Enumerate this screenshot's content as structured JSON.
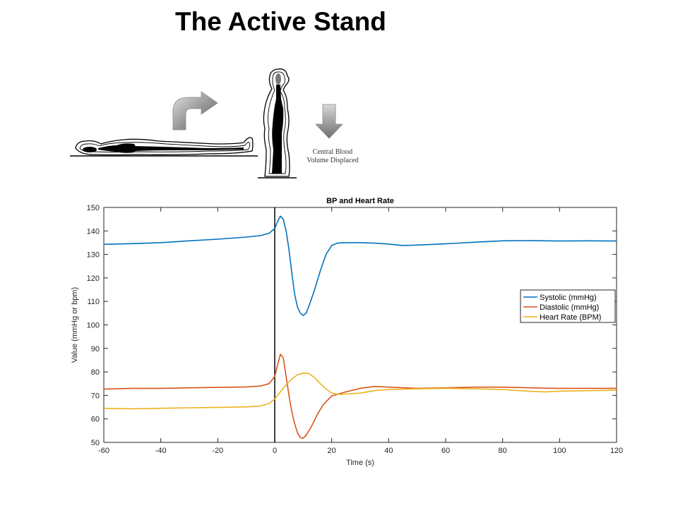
{
  "slide": {
    "title": "The Active Stand"
  },
  "illustration": {
    "caption_line1": "Central Blood",
    "caption_line2": "Volume Displaced",
    "icons": [
      "supine-person-icon",
      "curved-arrow-icon",
      "standing-person-icon",
      "down-arrow-icon"
    ]
  },
  "chart_data": {
    "type": "line",
    "title": "BP and Heart Rate",
    "xlabel": "Time (s)",
    "ylabel": "Value (mmHg or bpm)",
    "xlim": [
      -60,
      120
    ],
    "ylim": [
      50,
      150
    ],
    "xticks": [
      -60,
      -40,
      -20,
      0,
      20,
      40,
      60,
      80,
      100,
      120
    ],
    "yticks": [
      50,
      60,
      70,
      80,
      90,
      100,
      110,
      120,
      130,
      140,
      150
    ],
    "grid": false,
    "legend_position": "right",
    "vertical_marker_x": 0,
    "series": [
      {
        "name": "Systolic (mmHg)",
        "color": "#0072BD",
        "points": [
          [
            -60,
            134.3
          ],
          [
            -50,
            134.6
          ],
          [
            -40,
            135
          ],
          [
            -30,
            135.8
          ],
          [
            -20,
            136.5
          ],
          [
            -10,
            137.4
          ],
          [
            -5,
            138
          ],
          [
            -2,
            139
          ],
          [
            0,
            141
          ],
          [
            1,
            144
          ],
          [
            2,
            146.3
          ],
          [
            3,
            145
          ],
          [
            4,
            140
          ],
          [
            5,
            132
          ],
          [
            6,
            122
          ],
          [
            7,
            113
          ],
          [
            8,
            107.5
          ],
          [
            9,
            105
          ],
          [
            10,
            104
          ],
          [
            11,
            105
          ],
          [
            12,
            108
          ],
          [
            14,
            115
          ],
          [
            16,
            123
          ],
          [
            18,
            130
          ],
          [
            20,
            133.8
          ],
          [
            22,
            134.8
          ],
          [
            25,
            135
          ],
          [
            30,
            135
          ],
          [
            35,
            134.8
          ],
          [
            40,
            134.4
          ],
          [
            45,
            133.8
          ],
          [
            50,
            134
          ],
          [
            60,
            134.5
          ],
          [
            70,
            135.2
          ],
          [
            80,
            135.8
          ],
          [
            90,
            135.9
          ],
          [
            100,
            135.7
          ],
          [
            110,
            135.8
          ],
          [
            120,
            135.7
          ]
        ]
      },
      {
        "name": "Diastolic (mmHg)",
        "color": "#D95319",
        "points": [
          [
            -60,
            72.7
          ],
          [
            -50,
            73
          ],
          [
            -40,
            73
          ],
          [
            -30,
            73.2
          ],
          [
            -20,
            73.4
          ],
          [
            -10,
            73.6
          ],
          [
            -5,
            74
          ],
          [
            -2,
            75
          ],
          [
            0,
            78
          ],
          [
            1,
            83
          ],
          [
            2,
            87.5
          ],
          [
            3,
            86
          ],
          [
            4,
            78
          ],
          [
            5,
            70
          ],
          [
            6,
            63
          ],
          [
            7,
            58
          ],
          [
            8,
            54
          ],
          [
            9,
            52
          ],
          [
            10,
            51.8
          ],
          [
            11,
            53
          ],
          [
            13,
            57
          ],
          [
            15,
            62
          ],
          [
            17,
            66
          ],
          [
            20,
            69.8
          ],
          [
            25,
            71.5
          ],
          [
            30,
            73
          ],
          [
            35,
            73.8
          ],
          [
            40,
            73.5
          ],
          [
            50,
            73
          ],
          [
            60,
            73.2
          ],
          [
            70,
            73.5
          ],
          [
            80,
            73.5
          ],
          [
            90,
            73.2
          ],
          [
            100,
            73
          ],
          [
            110,
            73
          ],
          [
            120,
            73
          ]
        ]
      },
      {
        "name": "Heart Rate (BPM)",
        "color": "#EDB120",
        "points": [
          [
            -60,
            64.5
          ],
          [
            -50,
            64.3
          ],
          [
            -40,
            64.5
          ],
          [
            -30,
            64.7
          ],
          [
            -20,
            64.9
          ],
          [
            -10,
            65.1
          ],
          [
            -5,
            65.5
          ],
          [
            -2,
            66.5
          ],
          [
            0,
            68.5
          ],
          [
            2,
            71.5
          ],
          [
            4,
            74.5
          ],
          [
            6,
            77
          ],
          [
            8,
            78.8
          ],
          [
            10,
            79.5
          ],
          [
            12,
            79.3
          ],
          [
            14,
            77.5
          ],
          [
            16,
            75
          ],
          [
            18,
            72.8
          ],
          [
            20,
            71
          ],
          [
            23,
            70.4
          ],
          [
            25,
            70.6
          ],
          [
            30,
            71
          ],
          [
            35,
            72
          ],
          [
            40,
            72.5
          ],
          [
            50,
            72.8
          ],
          [
            60,
            73
          ],
          [
            70,
            72.8
          ],
          [
            80,
            72.5
          ],
          [
            90,
            71.7
          ],
          [
            95,
            71.5
          ],
          [
            100,
            71.8
          ],
          [
            110,
            72
          ],
          [
            120,
            72.2
          ]
        ]
      }
    ]
  }
}
